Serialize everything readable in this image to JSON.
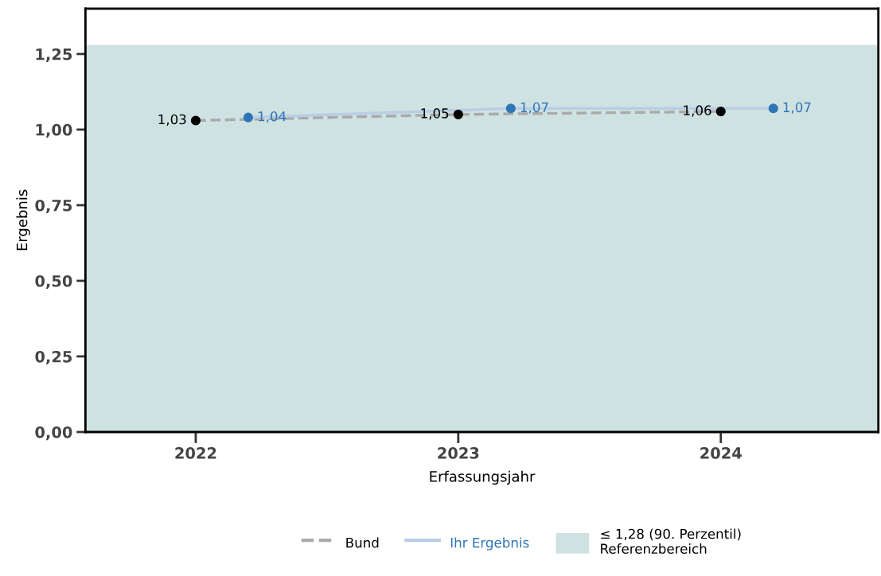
{
  "chart_data": {
    "type": "line",
    "xlabel": "Erfassungsjahr",
    "ylabel": "Ergebnis",
    "xlim": [
      2021.58,
      2024.6
    ],
    "xticks": [
      2022,
      2023,
      2024
    ],
    "ylim": [
      0,
      1.4
    ],
    "yticks": [
      {
        "value": 0,
        "label": "0,00"
      },
      {
        "value": 0.25,
        "label": "0,25"
      },
      {
        "value": 0.5,
        "label": "0,50"
      },
      {
        "value": 0.75,
        "label": "0,75"
      },
      {
        "value": 1,
        "label": "1,00"
      },
      {
        "value": 1.25,
        "label": "1,25"
      }
    ],
    "series": [
      {
        "name": "Bund",
        "color": "#aaaaaa",
        "colors": [
          "#000000",
          "#000000",
          "#000000"
        ],
        "line_style": "dashed",
        "x": [
          2022,
          2023,
          2024
        ],
        "values": [
          1.03,
          1.05,
          1.06
        ],
        "value_labels": [
          "1,03",
          "1,05",
          "1,06"
        ]
      },
      {
        "name": "Ihr Ergebnis",
        "color": "#b9cde5",
        "colors": [
          "#2e75b6",
          "#2e75b6",
          "#2e75b6"
        ],
        "line_style": "solid",
        "x": [
          2022.2,
          2023.2,
          2024.2
        ],
        "values": [
          1.04,
          1.07,
          1.07
        ],
        "value_labels": [
          "1,04",
          "1,07",
          "1,07"
        ]
      }
    ],
    "bands": [
      {
        "axis": "y",
        "from": 0,
        "to": 1.28,
        "label": "≤ 1,28 (90. Perzentil)\nReferenzbereich",
        "color": "#cfe2e2"
      }
    ],
    "marker": "circle",
    "grid": false,
    "legend": "bottom"
  }
}
